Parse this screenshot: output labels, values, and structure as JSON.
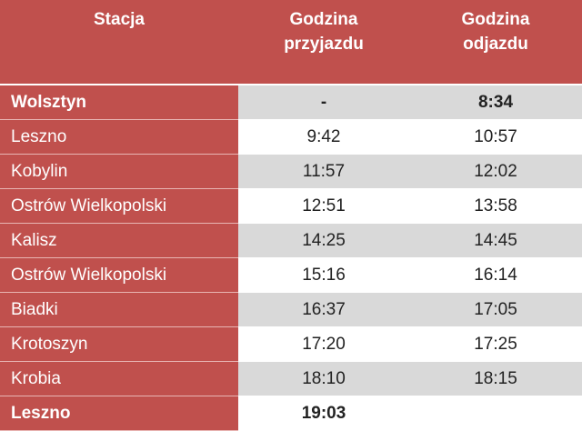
{
  "table": {
    "header": [
      "Stacja",
      "Godzina przyjazdu",
      "Godzina odjazdu"
    ],
    "rows": [
      [
        "Wolsztyn",
        "-",
        "8:34"
      ],
      [
        "Leszno",
        "9:42",
        "10:57"
      ],
      [
        "Kobylin",
        "11:57",
        "12:02"
      ],
      [
        "Ostrów Wielkopolski",
        "12:51",
        "13:58"
      ],
      [
        "Kalisz",
        "14:25",
        "14:45"
      ],
      [
        "Ostrów Wielkopolski",
        "15:16",
        "16:14"
      ],
      [
        "Biadki",
        "16:37",
        "17:05"
      ],
      [
        "Krotoszyn",
        "17:20",
        "17:25"
      ],
      [
        "Krobia",
        "18:10",
        "18:15"
      ],
      [
        "Leszno",
        "19:03",
        null
      ]
    ]
  }
}
